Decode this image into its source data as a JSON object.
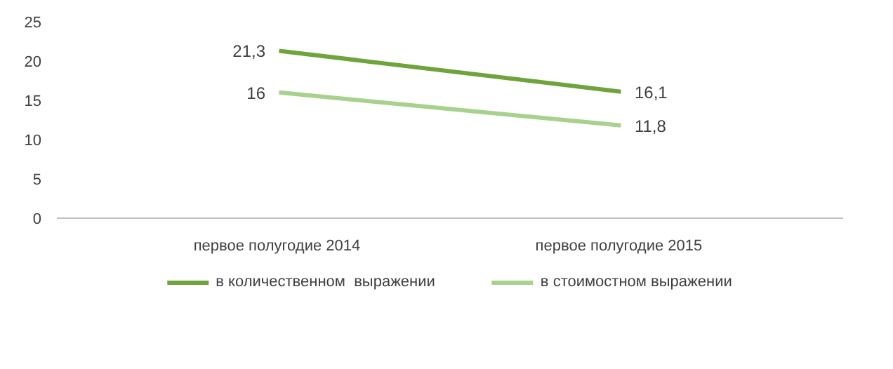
{
  "chart_data": {
    "type": "line",
    "categories": [
      "первое  полугодие 2014",
      "первое  полугодие 2015"
    ],
    "series": [
      {
        "name": "в количественном  выражении",
        "color": "#70a33c",
        "values": [
          21.3,
          16.1
        ],
        "value_labels": [
          "21,3",
          "16,1"
        ]
      },
      {
        "name": "в стоимостном выражении",
        "color": "#a9d18e",
        "values": [
          16,
          11.8
        ],
        "value_labels": [
          "16",
          "11,8"
        ]
      }
    ],
    "ylim": [
      0,
      25
    ],
    "yticks": [
      0,
      5,
      10,
      15,
      20,
      25
    ],
    "grid": false,
    "legend": "bottom",
    "marker": "none",
    "line_style": "solid"
  }
}
